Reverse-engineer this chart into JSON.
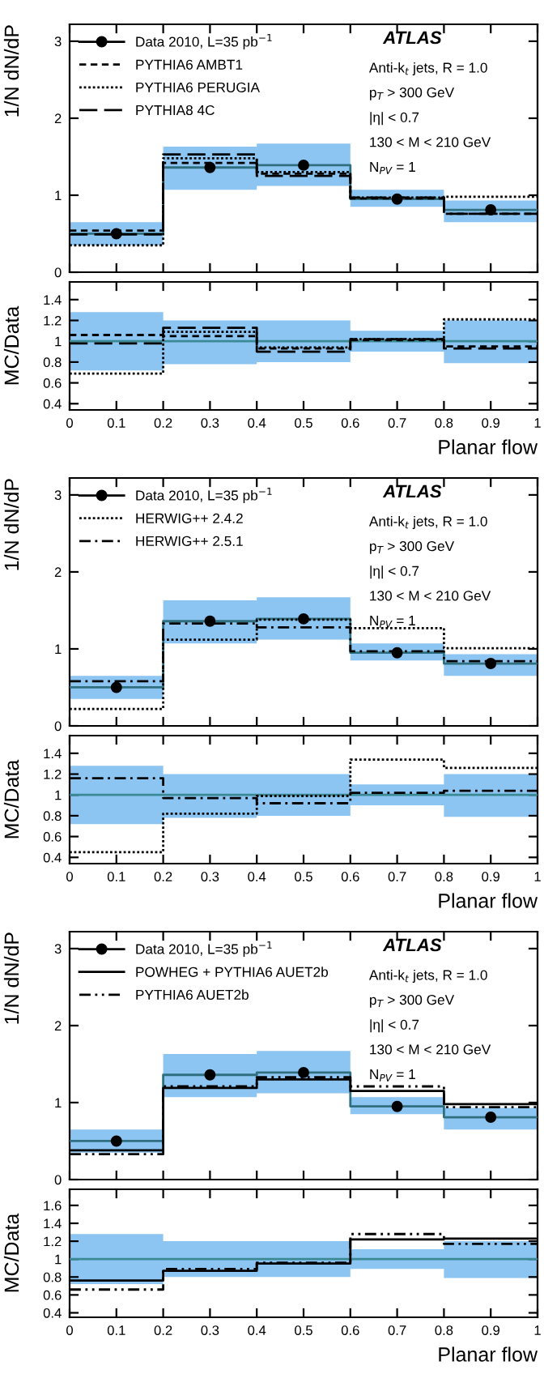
{
  "chart_data": [
    {
      "type": "step",
      "x": [
        0,
        0.2,
        0.4,
        0.6,
        0.8,
        1
      ],
      "xlim": [
        0,
        1
      ],
      "xticks": [
        0,
        0.1,
        0.2,
        0.3,
        0.4,
        0.5,
        0.6,
        0.7,
        0.8,
        0.9,
        1
      ],
      "ylim": [
        0,
        3.22
      ],
      "yticks": [
        0,
        1,
        2,
        3
      ],
      "ylabel": "1/N dN/dP",
      "tick_labels": "y",
      "legend": "top left",
      "annotations": [
        "ATLAS",
        "Anti-k$_{t}$ jets, R = 1.0",
        "p$_{T}$ > 300 GeV",
        "|η| < 0.7",
        "130 < M < 210 GeV",
        "N$_{PV}$ = 1"
      ],
      "series": [
        {
          "color": "#2f6f80",
          "line_style": "solid",
          "values": [
            0.5,
            1.36,
            1.39,
            0.95,
            0.81,
            0.81
          ],
          "lower": [
            0.35,
            1.07,
            1.12,
            0.85,
            0.65,
            0.65
          ],
          "upper": [
            0.65,
            1.63,
            1.67,
            1.07,
            0.93,
            0.93
          ]
        },
        {
          "type": "scatter",
          "name": "Data 2010, L=35 pb$^{−1}$",
          "color": "#000000",
          "marker": "circle",
          "x": [
            0.1,
            0.3,
            0.5,
            0.7,
            0.9
          ],
          "values": [
            0.5,
            1.36,
            1.39,
            0.95,
            0.81
          ],
          "errors": [
            0.05,
            0.06,
            0.06,
            0.04,
            0.04
          ]
        },
        {
          "name": "PYTHIA6 AMBT1",
          "color": "#000000",
          "line_style": "dashed",
          "values": [
            0.54,
            1.42,
            1.28,
            0.96,
            0.76,
            0.76
          ]
        },
        {
          "name": "PYTHIA6 PERUGIA",
          "color": "#000000",
          "line_style": "dotted",
          "values": [
            0.35,
            1.48,
            1.3,
            0.97,
            0.98,
            0.98
          ]
        },
        {
          "name": "PYTHIA8 4C",
          "color": "#000000",
          "line_style": "longdash",
          "values": [
            0.49,
            1.53,
            1.25,
            0.97,
            0.76,
            0.76
          ]
        }
      ]
    },
    {
      "type": "step",
      "x": [
        0,
        0.2,
        0.4,
        0.6,
        0.8,
        1
      ],
      "xlim": [
        0,
        1
      ],
      "xticks": [
        0,
        0.1,
        0.2,
        0.3,
        0.4,
        0.5,
        0.6,
        0.7,
        0.8,
        0.9,
        1
      ],
      "ylim": [
        0.34,
        1.57
      ],
      "yticks": [
        0.4,
        0.6,
        0.8,
        1,
        1.2,
        1.4
      ],
      "xlabel": "Planar flow",
      "ylabel": "MC/Data",
      "series": [
        {
          "color": "#3a8a96",
          "line_style": "solid",
          "values": [
            1,
            1,
            1,
            1,
            1,
            1
          ],
          "lower": [
            0.72,
            0.78,
            0.8,
            0.9,
            0.79,
            0.79
          ],
          "upper": [
            1.28,
            1.2,
            1.2,
            1.1,
            1.2,
            1.2
          ]
        },
        {
          "color": "#000000",
          "line_style": "dashed",
          "values": [
            1.06,
            1.05,
            0.93,
            1.01,
            0.95,
            0.95
          ]
        },
        {
          "color": "#000000",
          "line_style": "dotted",
          "values": [
            0.69,
            1.09,
            0.94,
            1.02,
            1.21,
            1.21
          ]
        },
        {
          "color": "#000000",
          "line_style": "longdash",
          "values": [
            0.98,
            1.13,
            0.9,
            1.02,
            0.93,
            0.93
          ]
        }
      ]
    },
    {
      "type": "step",
      "x": [
        0,
        0.2,
        0.4,
        0.6,
        0.8,
        1
      ],
      "xlim": [
        0,
        1
      ],
      "xticks": [
        0,
        0.1,
        0.2,
        0.3,
        0.4,
        0.5,
        0.6,
        0.7,
        0.8,
        0.9,
        1
      ],
      "ylim": [
        0,
        3.22
      ],
      "yticks": [
        0,
        1,
        2,
        3
      ],
      "ylabel": "1/N dN/dP",
      "tick_labels": "y",
      "legend": "top left",
      "annotations": [
        "ATLAS",
        "Anti-k$_{t}$ jets, R = 1.0",
        "p$_{T}$ > 300 GeV",
        "|η| < 0.7",
        "130 < M < 210 GeV",
        "N$_{PV}$ = 1"
      ],
      "series": [
        {
          "color": "#2f6f80",
          "line_style": "solid",
          "values": [
            0.5,
            1.36,
            1.39,
            0.95,
            0.81,
            0.81
          ],
          "lower": [
            0.35,
            1.07,
            1.12,
            0.85,
            0.65,
            0.65
          ],
          "upper": [
            0.65,
            1.63,
            1.67,
            1.07,
            0.93,
            0.93
          ]
        },
        {
          "type": "scatter",
          "name": "Data 2010, L=35 pb$^{−1}$",
          "color": "#000000",
          "marker": "circle",
          "x": [
            0.1,
            0.3,
            0.5,
            0.7,
            0.9
          ],
          "values": [
            0.5,
            1.36,
            1.39,
            0.95,
            0.81
          ],
          "errors": [
            0.05,
            0.06,
            0.06,
            0.04,
            0.04
          ]
        },
        {
          "name": "HERWIG++ 2.4.2",
          "color": "#000000",
          "line_style": "dotted",
          "values": [
            0.22,
            1.12,
            1.38,
            1.27,
            1.01,
            1.01
          ]
        },
        {
          "name": "HERWIG++ 2.5.1",
          "color": "#000000",
          "line_style": "dashdot",
          "values": [
            0.58,
            1.33,
            1.28,
            0.97,
            0.84,
            0.84
          ]
        }
      ]
    },
    {
      "type": "step",
      "x": [
        0,
        0.2,
        0.4,
        0.6,
        0.8,
        1
      ],
      "xlim": [
        0,
        1
      ],
      "xticks": [
        0,
        0.1,
        0.2,
        0.3,
        0.4,
        0.5,
        0.6,
        0.7,
        0.8,
        0.9,
        1
      ],
      "ylim": [
        0.34,
        1.57
      ],
      "yticks": [
        0.4,
        0.6,
        0.8,
        1,
        1.2,
        1.4
      ],
      "xlabel": "Planar flow",
      "ylabel": "MC/Data",
      "series": [
        {
          "color": "#3a8a96",
          "line_style": "solid",
          "values": [
            1,
            1,
            1,
            1,
            1,
            1
          ],
          "lower": [
            0.72,
            0.78,
            0.8,
            0.9,
            0.79,
            0.79
          ],
          "upper": [
            1.28,
            1.2,
            1.2,
            1.1,
            1.2,
            1.2
          ]
        },
        {
          "color": "#000000",
          "line_style": "dotted",
          "values": [
            0.45,
            0.82,
            0.99,
            1.34,
            1.26,
            1.26
          ]
        },
        {
          "color": "#000000",
          "line_style": "dashdot",
          "values": [
            1.16,
            0.97,
            0.92,
            1.02,
            1.04,
            1.04
          ]
        }
      ]
    },
    {
      "type": "step",
      "x": [
        0,
        0.2,
        0.4,
        0.6,
        0.8,
        1
      ],
      "xlim": [
        0,
        1
      ],
      "xticks": [
        0,
        0.1,
        0.2,
        0.3,
        0.4,
        0.5,
        0.6,
        0.7,
        0.8,
        0.9,
        1
      ],
      "ylim": [
        0,
        3.22
      ],
      "yticks": [
        0,
        1,
        2,
        3
      ],
      "ylabel": "1/N dN/dP",
      "tick_labels": "y",
      "legend": "top left",
      "annotations": [
        "ATLAS",
        "Anti-k$_{t}$ jets, R = 1.0",
        "p$_{T}$ > 300 GeV",
        "|η| < 0.7",
        "130 < M < 210 GeV",
        "N$_{PV}$ = 1"
      ],
      "series": [
        {
          "color": "#2f6f80",
          "line_style": "solid",
          "values": [
            0.5,
            1.36,
            1.39,
            0.95,
            0.81,
            0.81
          ],
          "lower": [
            0.35,
            1.07,
            1.12,
            0.85,
            0.65,
            0.65
          ],
          "upper": [
            0.65,
            1.63,
            1.67,
            1.07,
            0.93,
            0.93
          ]
        },
        {
          "type": "scatter",
          "name": "Data 2010, L=35 pb$^{−1}$",
          "color": "#000000",
          "marker": "circle",
          "x": [
            0.1,
            0.3,
            0.5,
            0.7,
            0.9
          ],
          "values": [
            0.5,
            1.36,
            1.39,
            0.95,
            0.81
          ],
          "errors": [
            0.05,
            0.06,
            0.06,
            0.04,
            0.04
          ]
        },
        {
          "name": "POWHEG + PYTHIA6 AUET2b",
          "color": "#000000",
          "line_style": "solid",
          "values": [
            0.38,
            1.19,
            1.3,
            1.15,
            0.98,
            0.98
          ]
        },
        {
          "name": "PYTHIA6 AUET2b",
          "color": "#000000",
          "line_style": "dashdotdot",
          "values": [
            0.33,
            1.21,
            1.33,
            1.21,
            0.94,
            0.94
          ]
        }
      ]
    },
    {
      "type": "step",
      "x": [
        0,
        0.2,
        0.4,
        0.6,
        0.8,
        1
      ],
      "xlim": [
        0,
        1
      ],
      "xticks": [
        0,
        0.1,
        0.2,
        0.3,
        0.4,
        0.5,
        0.6,
        0.7,
        0.8,
        0.9,
        1
      ],
      "ylim": [
        0.35,
        1.78
      ],
      "yticks": [
        0.4,
        0.6,
        0.8,
        1,
        1.2,
        1.4,
        1.6
      ],
      "xlabel": "Planar flow",
      "ylabel": "MC/Data",
      "series": [
        {
          "color": "#3a8a96",
          "line_style": "solid",
          "values": [
            1,
            1,
            1,
            1,
            1,
            1
          ],
          "lower": [
            0.72,
            0.8,
            0.8,
            0.89,
            0.79,
            0.79
          ],
          "upper": [
            1.28,
            1.2,
            1.2,
            1.11,
            1.2,
            1.2
          ]
        },
        {
          "color": "#000000",
          "line_style": "solid",
          "values": [
            0.76,
            0.87,
            0.95,
            1.22,
            1.23,
            1.23
          ]
        },
        {
          "color": "#000000",
          "line_style": "dashdotdot",
          "values": [
            0.66,
            0.89,
            0.96,
            1.28,
            1.17,
            1.17
          ]
        }
      ]
    }
  ]
}
